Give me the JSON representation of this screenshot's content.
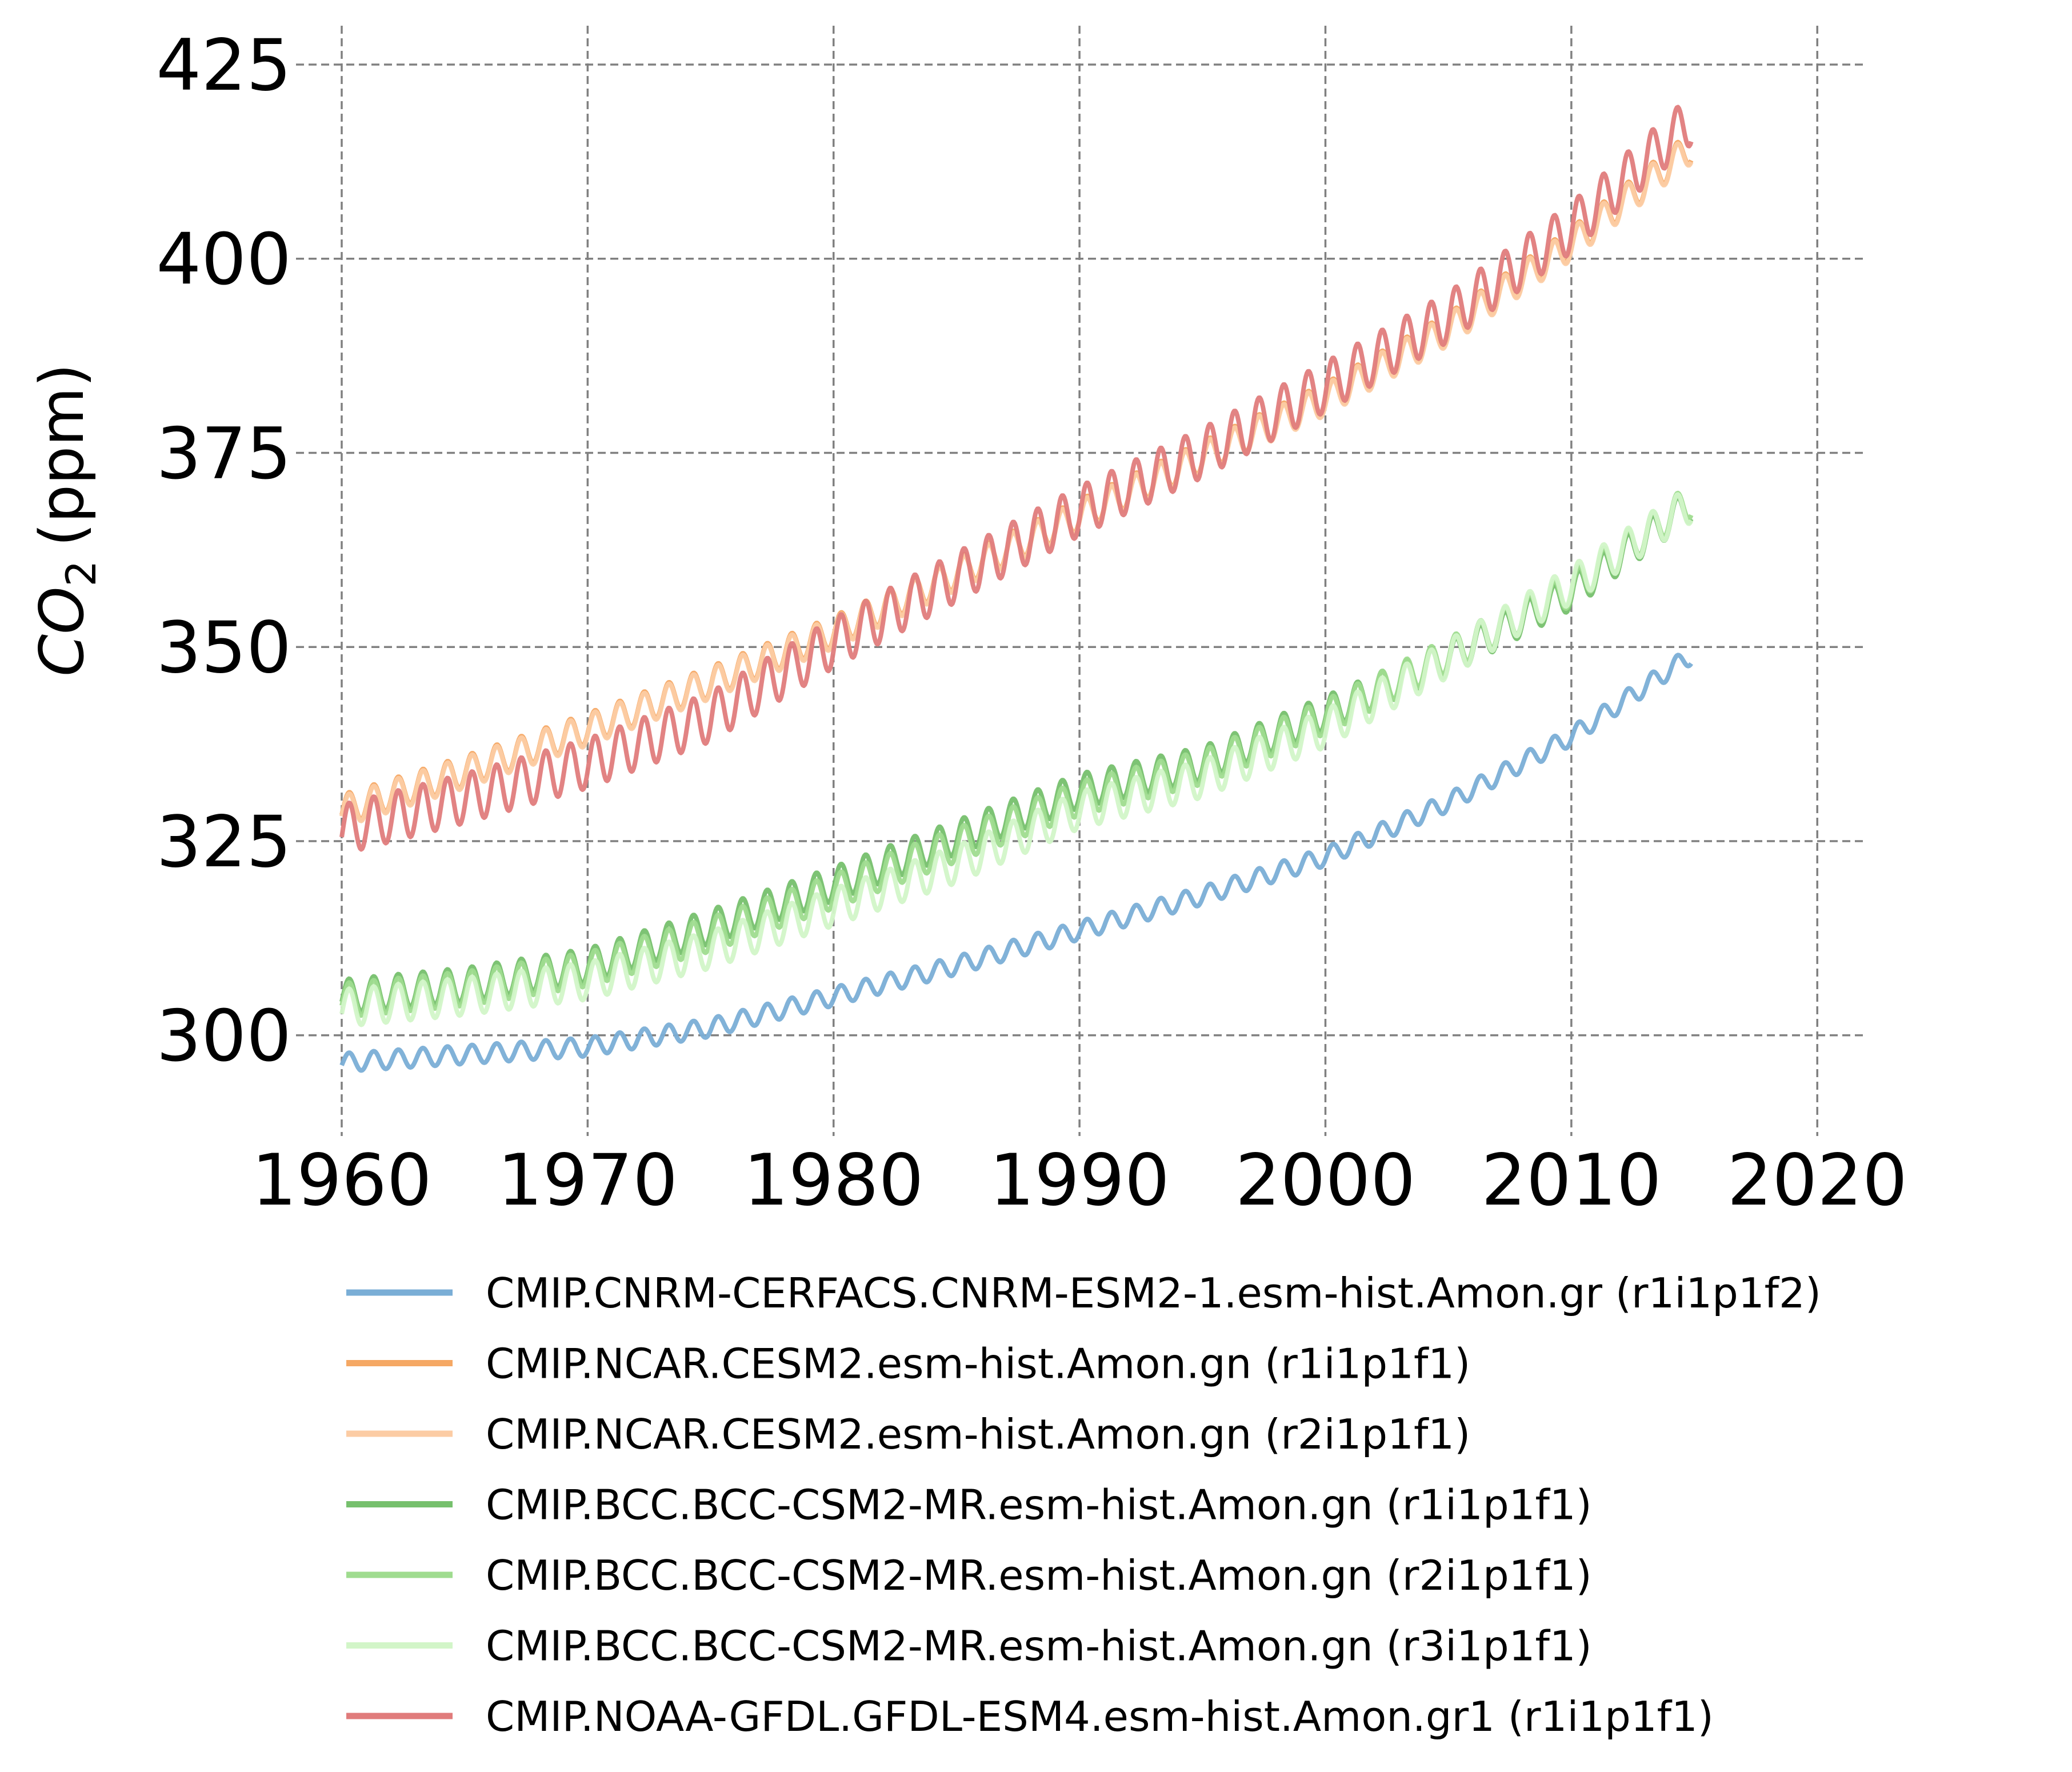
{
  "chart_data": {
    "type": "line",
    "title": "",
    "xlabel": "",
    "ylabel": "CO",
    "ylabel_sub": "2",
    "ylabel_unit": "(ppm)",
    "xlim": [
      1960,
      2021.9
    ],
    "ylim": [
      288.5,
      430
    ],
    "xticks": [
      1960,
      1970,
      1980,
      1990,
      2000,
      2010,
      2020
    ],
    "yticks": [
      300,
      325,
      350,
      375,
      400,
      425
    ],
    "grid": true,
    "legend_position": "below",
    "series": [
      {
        "name": "CMIP.CNRM-CERFACS.CNRM-ESM2-1.esm-hist.Amon.gr (r1i1p1f2)",
        "color": "#7aaed6",
        "x": [
          1960,
          1965,
          1970,
          1975,
          1980,
          1985,
          1990,
          1995,
          2000,
          2005,
          2010,
          2014.9
        ],
        "trend": [
          296.5,
          297.5,
          298.5,
          301.0,
          305.0,
          309.0,
          313.5,
          318.0,
          323.0,
          330.0,
          338.5,
          349.0
        ],
        "seasonal_amplitude": 1.2
      },
      {
        "name": "CMIP.NCAR.CESM2.esm-hist.Amon.gn (r1i1p1f1)",
        "color": "#f5a864",
        "x": [
          1960,
          1965,
          1970,
          1975,
          1980,
          1985,
          1990,
          1995,
          2000,
          2005,
          2010,
          2014.9
        ],
        "trend": [
          329.0,
          334.0,
          339.5,
          345.5,
          352.0,
          359.5,
          367.0,
          374.5,
          382.0,
          391.0,
          402.0,
          414.5
        ],
        "seasonal_amplitude": 2.0
      },
      {
        "name": "CMIP.NCAR.CESM2.esm-hist.Amon.gn (r2i1p1f1)",
        "color": "#fccca4",
        "x": [
          1960,
          1965,
          1970,
          1975,
          1980,
          1985,
          1990,
          1995,
          2000,
          2005,
          2010,
          2014.9
        ],
        "trend": [
          328.8,
          333.8,
          339.3,
          345.3,
          351.8,
          359.3,
          366.8,
          374.3,
          381.8,
          390.8,
          401.8,
          414.3
        ],
        "seasonal_amplitude": 2.0
      },
      {
        "name": "CMIP.BCC.BCC-CSM2-MR.esm-hist.Amon.gn (r1i1p1f1)",
        "color": "#76c06d",
        "x": [
          1960,
          1965,
          1970,
          1975,
          1980,
          1985,
          1990,
          1995,
          2000,
          2005,
          2010,
          2014.9
        ],
        "trend": [
          305.0,
          306.5,
          309.0,
          314.0,
          319.5,
          325.5,
          331.5,
          335.0,
          341.5,
          348.5,
          357.0,
          368.5
        ],
        "seasonal_amplitude": 2.2
      },
      {
        "name": "CMIP.BCC.BCC-CSM2-MR.esm-hist.Amon.gn (r2i1p1f1)",
        "color": "#9fdc8f",
        "x": [
          1960,
          1965,
          1970,
          1975,
          1980,
          1985,
          1990,
          1995,
          2000,
          2005,
          2010,
          2014.9
        ],
        "trend": [
          304.5,
          306.0,
          308.5,
          313.0,
          318.5,
          324.5,
          330.5,
          334.5,
          341.0,
          349.0,
          357.5,
          369.0
        ],
        "seasonal_amplitude": 2.2
      },
      {
        "name": "CMIP.BCC.BCC-CSM2-MR.esm-hist.Amon.gn (r3i1p1f1)",
        "color": "#d2f5c8",
        "x": [
          1960,
          1965,
          1970,
          1975,
          1980,
          1985,
          1990,
          1995,
          2000,
          2005,
          2010,
          2014.9
        ],
        "trend": [
          303.5,
          305.0,
          307.0,
          311.0,
          316.5,
          322.0,
          329.0,
          333.0,
          339.5,
          348.5,
          358.0,
          368.5
        ],
        "seasonal_amplitude": 2.4
      },
      {
        "name": "CMIP.NOAA-GFDL.GFDL-ESM4.esm-hist.Amon.gr1 (r1i1p1f1)",
        "color": "#e07c7c",
        "x": [
          1960,
          1965,
          1970,
          1975,
          1980,
          1985,
          1990,
          1995,
          2000,
          2005,
          2010,
          2014.9
        ],
        "trend": [
          326.5,
          330.5,
          335.0,
          341.0,
          350.5,
          359.0,
          367.5,
          375.0,
          383.5,
          392.5,
          404.0,
          418.0
        ],
        "seasonal_amplitude": 3.2
      }
    ]
  }
}
